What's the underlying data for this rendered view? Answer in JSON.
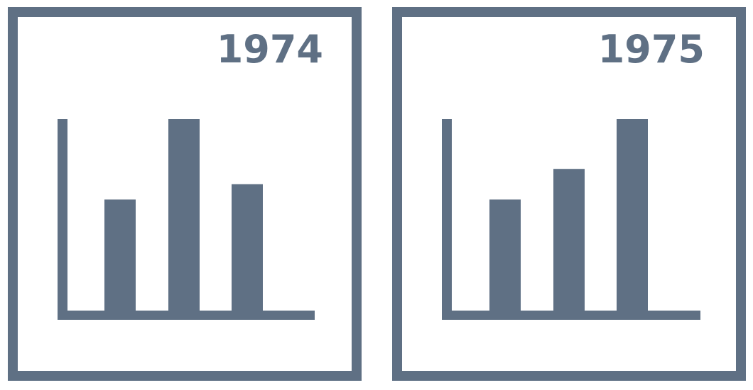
{
  "colors": {
    "ink": "#5f7084",
    "background": "#ffffff"
  },
  "chart_data": [
    {
      "type": "bar",
      "title": "1974",
      "categories": [
        "",
        "",
        ""
      ],
      "values": [
        58,
        100,
        66
      ],
      "ylim": [
        0,
        100
      ],
      "grid": false,
      "legend": "none"
    },
    {
      "type": "bar",
      "title": "1975",
      "categories": [
        "",
        "",
        ""
      ],
      "values": [
        58,
        74,
        100
      ],
      "ylim": [
        0,
        100
      ],
      "grid": false,
      "legend": "none"
    }
  ]
}
